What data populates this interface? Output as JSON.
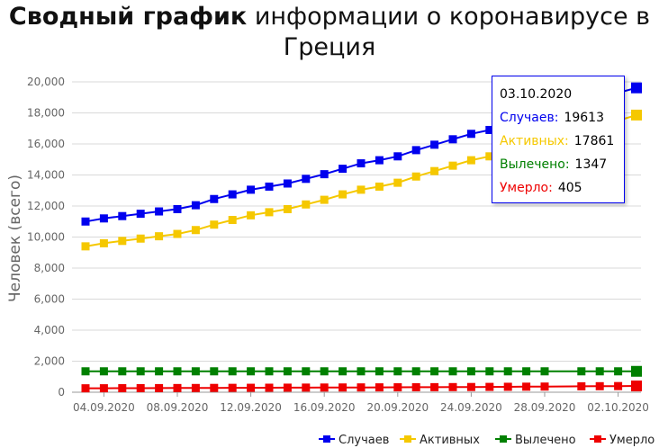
{
  "title": {
    "bold": "Сводный график",
    "rest": " информации о коронавирусе в Греция"
  },
  "chart_data": {
    "type": "line",
    "ylabel": "Человек (всего)",
    "ylim": [
      0,
      20000
    ],
    "yticks": [
      "0",
      "2,000",
      "4,000",
      "6,000",
      "8,000",
      "10,000",
      "12,000",
      "14,000",
      "16,000",
      "18,000",
      "20,000"
    ],
    "x": [
      "03.09.2020",
      "04.09.2020",
      "05.09.2020",
      "06.09.2020",
      "07.09.2020",
      "08.09.2020",
      "09.09.2020",
      "10.09.2020",
      "11.09.2020",
      "12.09.2020",
      "13.09.2020",
      "14.09.2020",
      "15.09.2020",
      "16.09.2020",
      "17.09.2020",
      "18.09.2020",
      "19.09.2020",
      "20.09.2020",
      "21.09.2020",
      "22.09.2020",
      "23.09.2020",
      "24.09.2020",
      "25.09.2020",
      "26.09.2020",
      "27.09.2020",
      "28.09.2020",
      "29.09.2020",
      "30.09.2020",
      "01.10.2020",
      "02.10.2020",
      "03.10.2020"
    ],
    "xtick_labels": [
      "04.09.2020",
      "08.09.2020",
      "12.09.2020",
      "16.09.2020",
      "20.09.2020",
      "24.09.2020",
      "28.09.2020",
      "02.10.2020"
    ],
    "series": [
      {
        "name": "Случаев",
        "color": "#0000ee",
        "values": [
          11000,
          11200,
          11350,
          11500,
          11650,
          11800,
          12050,
          12450,
          12750,
          13050,
          13250,
          13450,
          13750,
          14050,
          14400,
          14750,
          14950,
          15200,
          15600,
          15950,
          16300,
          16650,
          16900,
          17200,
          17500,
          17800,
          18100,
          18550,
          18900,
          19300,
          19613
        ]
      },
      {
        "name": "Активных",
        "color": "#f5c800",
        "values": [
          9400,
          9600,
          9750,
          9900,
          10050,
          10200,
          10450,
          10800,
          11100,
          11400,
          11600,
          11800,
          12100,
          12400,
          12750,
          13050,
          13250,
          13500,
          13900,
          14250,
          14600,
          14950,
          15200,
          15500,
          15800,
          16100,
          16400,
          16800,
          17150,
          17500,
          17861
        ]
      },
      {
        "name": "Вылечено",
        "color": "#008000",
        "values": [
          1347,
          1347,
          1347,
          1347,
          1347,
          1347,
          1347,
          1347,
          1347,
          1347,
          1347,
          1347,
          1347,
          1347,
          1347,
          1347,
          1347,
          1347,
          1347,
          1347,
          1347,
          1347,
          1347,
          1347,
          1347,
          1347,
          null,
          1347,
          1347,
          1347,
          1347
        ]
      },
      {
        "name": "Умерло",
        "color": "#ee0000",
        "values": [
          253,
          256,
          260,
          263,
          266,
          270,
          273,
          278,
          282,
          286,
          290,
          294,
          298,
          302,
          306,
          310,
          314,
          318,
          322,
          326,
          330,
          336,
          343,
          350,
          357,
          364,
          null,
          380,
          388,
          396,
          405
        ]
      }
    ],
    "tooltip": {
      "date": "03.10.2020",
      "rows": [
        {
          "label": "Случаев:",
          "value": "19613",
          "color": "#0000ee"
        },
        {
          "label": "Активных:",
          "value": "17861",
          "color": "#f5c800"
        },
        {
          "label": "Вылечено:",
          "value": "1347",
          "color": "#008000"
        },
        {
          "label": "Умерло:",
          "value": "405",
          "color": "#ee0000"
        }
      ]
    },
    "legend_position": "bottom-right"
  }
}
